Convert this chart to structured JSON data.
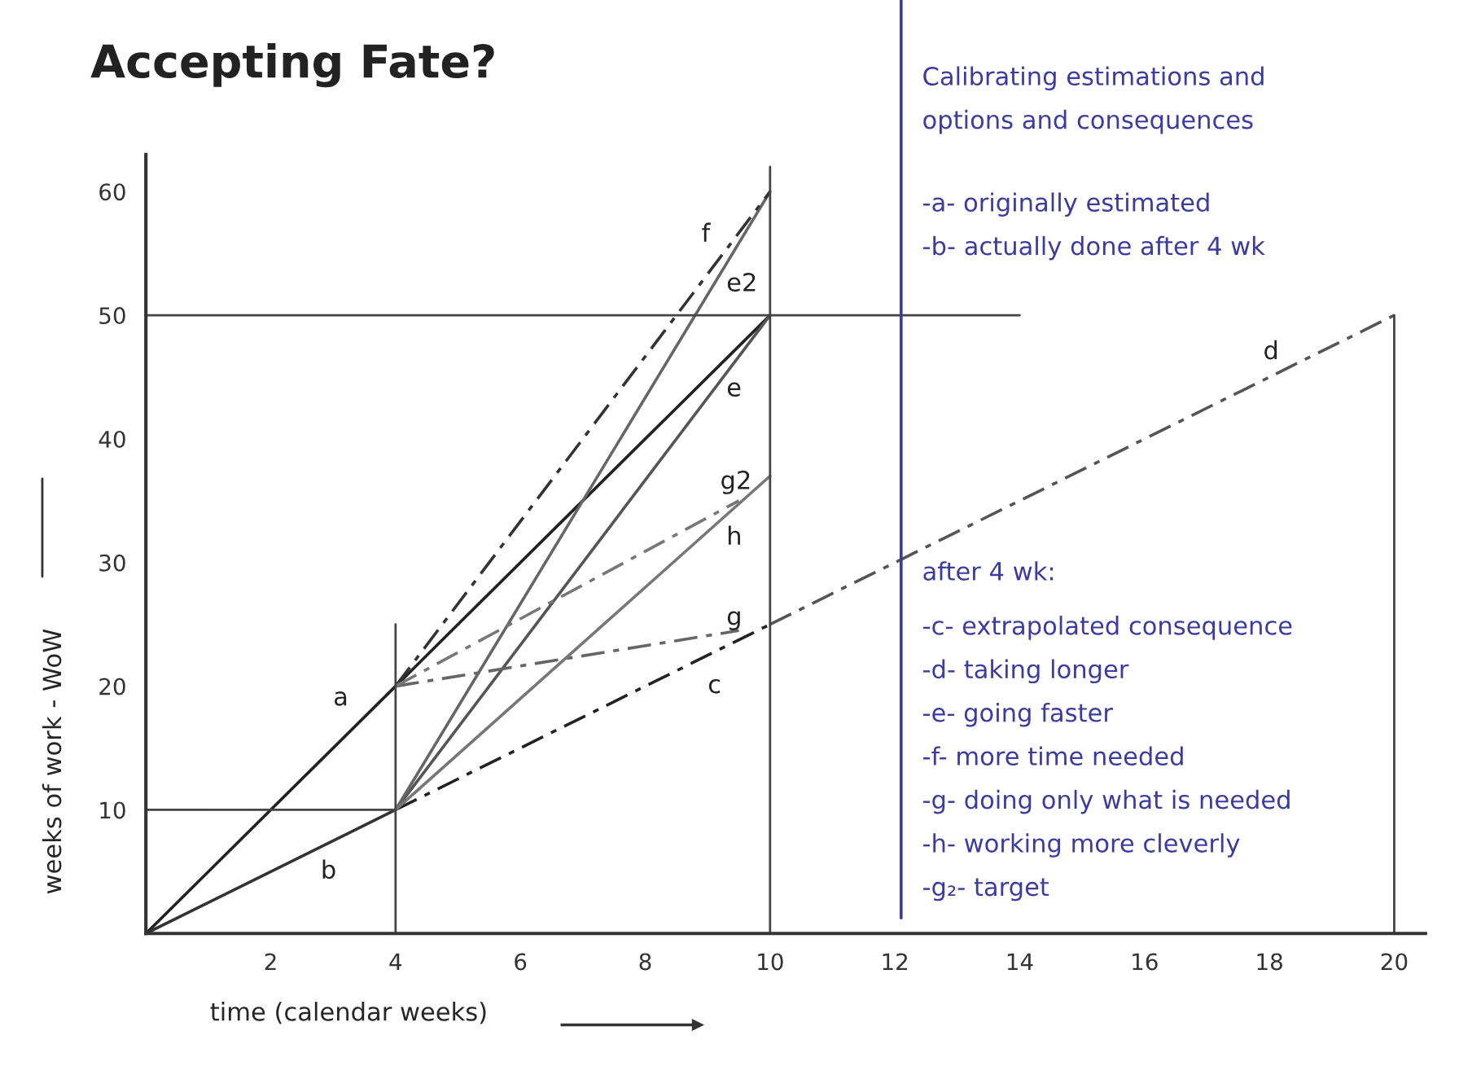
{
  "chart_data": {
    "type": "line",
    "title": "Accepting Fate?",
    "xlabel": "time (calendar weeks)",
    "ylabel": "weeks of work - WoW",
    "xlim": [
      0,
      20.5
    ],
    "ylim": [
      0,
      63
    ],
    "xticks": [
      2,
      4,
      6,
      8,
      10,
      12,
      14,
      16,
      18,
      20
    ],
    "yticks": [
      10,
      20,
      30,
      40,
      50,
      60
    ],
    "grid": false,
    "legend": false,
    "marker": "none",
    "series": [
      {
        "name": "a",
        "x": [
          0,
          4,
          10
        ],
        "values": [
          0,
          20,
          50
        ],
        "color": "#222222",
        "line_style": "solid"
      },
      {
        "name": "b",
        "x": [
          0,
          4
        ],
        "values": [
          0,
          10
        ],
        "color": "#333333",
        "line_style": "solid"
      },
      {
        "name": "c",
        "x": [
          4,
          10
        ],
        "values": [
          10,
          25
        ],
        "color": "#222222",
        "line_style": "dashed"
      },
      {
        "name": "d",
        "x": [
          10,
          20
        ],
        "values": [
          25,
          50
        ],
        "color": "#555555",
        "line_style": "dashed"
      },
      {
        "name": "e",
        "x": [
          4,
          10
        ],
        "values": [
          10,
          50
        ],
        "color": "#555555",
        "line_style": "solid"
      },
      {
        "name": "e2",
        "x": [
          4,
          10
        ],
        "values": [
          10,
          60
        ],
        "color": "#666666",
        "line_style": "solid"
      },
      {
        "name": "f",
        "x": [
          4,
          10
        ],
        "values": [
          20,
          60
        ],
        "color": "#333333",
        "line_style": "dashed"
      },
      {
        "name": "g",
        "x": [
          4,
          9.5
        ],
        "values": [
          20,
          24.5
        ],
        "color": "#666666",
        "line_style": "dashed"
      },
      {
        "name": "g2",
        "x": [
          4,
          9.5
        ],
        "values": [
          20,
          35
        ],
        "color": "#777777",
        "line_style": "dashed"
      },
      {
        "name": "h",
        "x": [
          4,
          10
        ],
        "values": [
          10,
          37
        ],
        "color": "#777777",
        "line_style": "solid"
      },
      {
        "x": [
          0,
          14
        ],
        "values": [
          50,
          50
        ],
        "color": "#444444",
        "line_style": "solid"
      },
      {
        "x": [
          0,
          4
        ],
        "values": [
          10,
          10
        ],
        "color": "#444444",
        "line_style": "solid"
      },
      {
        "x": [
          4,
          4
        ],
        "values": [
          0,
          25
        ],
        "color": "#444444",
        "line_style": "solid"
      },
      {
        "x": [
          10,
          10
        ],
        "values": [
          0,
          62
        ],
        "color": "#444444",
        "line_style": "solid"
      },
      {
        "x": [
          20,
          20
        ],
        "values": [
          50,
          0
        ],
        "color": "#444444",
        "line_style": "solid"
      }
    ],
    "ref_lines": [
      {
        "axis": "x",
        "value": 12.1,
        "color": "#3b3ba0"
      }
    ],
    "annotations": [
      "Calibrating estimations and",
      "options and consequences",
      "-a- originally estimated",
      "-b- actually done after 4 wk",
      "after 4 wk:",
      "-c- extrapolated consequence",
      "-d- taking longer",
      "-e- going faster",
      "-f- more time needed",
      "-g- doing only what is needed",
      "-h- working more cleverly",
      "-g₂- target"
    ]
  }
}
